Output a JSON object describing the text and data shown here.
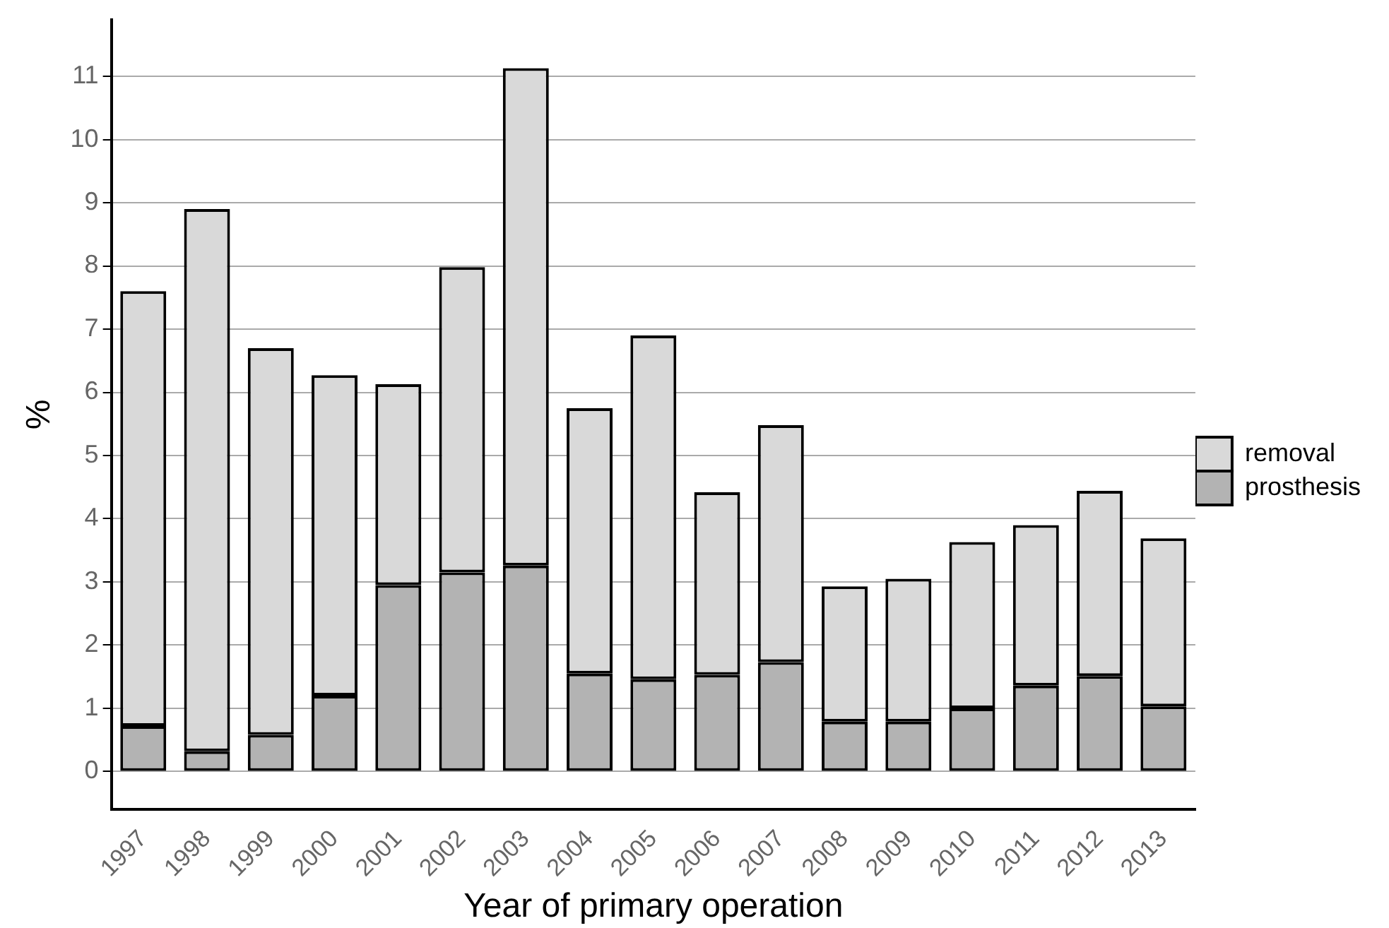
{
  "chart_data": {
    "type": "bar",
    "stacked": true,
    "xlabel": "Year of primary operation",
    "ylabel": "%",
    "categories": [
      "1997",
      "1998",
      "1999",
      "2000",
      "2001",
      "2002",
      "2003",
      "2004",
      "2005",
      "2006",
      "2007",
      "2008",
      "2009",
      "2010",
      "2011",
      "2012",
      "2013"
    ],
    "series": [
      {
        "name": "prosthesis",
        "color": "#b3b3b3",
        "values": [
          0.72,
          0.32,
          0.58,
          1.2,
          2.95,
          3.15,
          3.26,
          1.55,
          1.46,
          1.53,
          1.73,
          0.79,
          0.79,
          1.0,
          1.36,
          1.51,
          1.03
        ]
      },
      {
        "name": "removal",
        "color": "#d9d9d9",
        "values": [
          6.88,
          8.58,
          6.12,
          5.07,
          3.18,
          4.83,
          7.87,
          4.2,
          5.44,
          2.89,
          3.75,
          2.14,
          2.26,
          2.63,
          2.54,
          2.93,
          2.66
        ]
      }
    ],
    "ylim": [
      -0.6,
      11.9
    ],
    "yticks": [
      0,
      1,
      2,
      3,
      4,
      5,
      6,
      7,
      8,
      9,
      10,
      11
    ],
    "grid": "y",
    "legend": "right"
  }
}
